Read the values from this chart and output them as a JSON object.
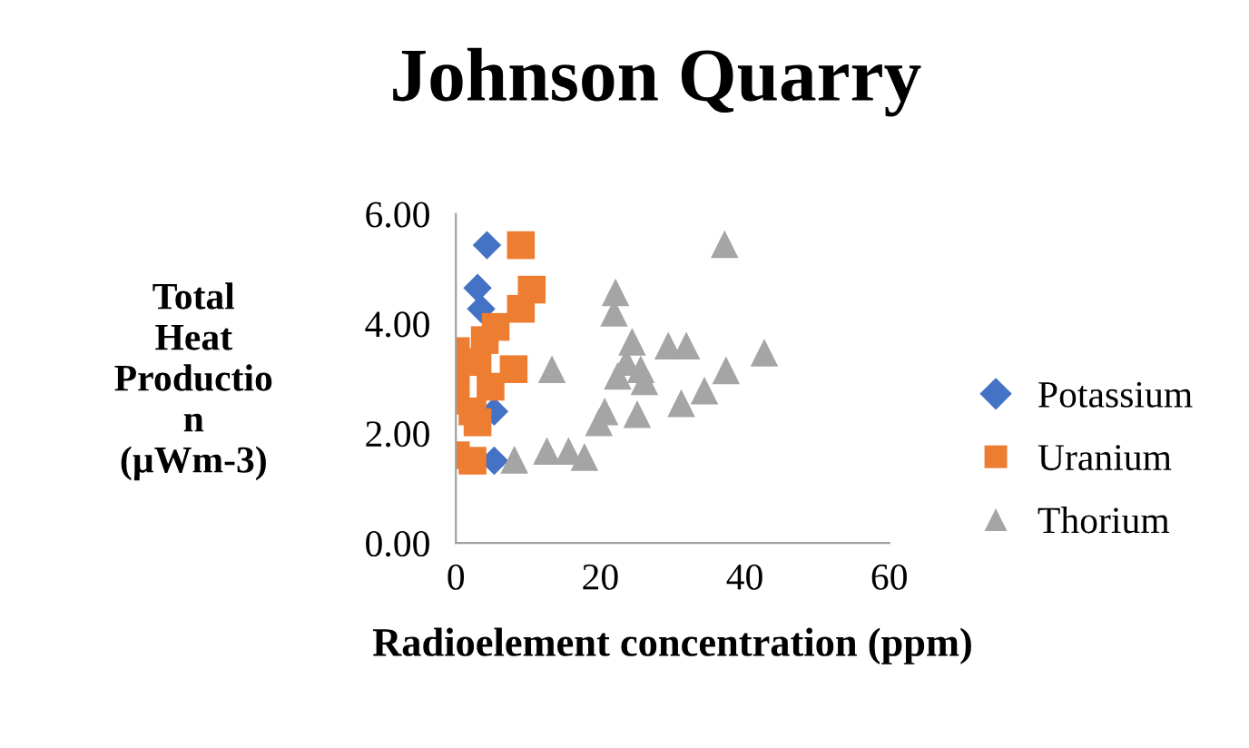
{
  "chart_data": {
    "type": "scatter",
    "title": "Johnson Quarry",
    "xlabel": "Radioelement concentration (ppm)",
    "ylabel": "Total\nHeat\nProductio\nn\n(µWm-3)",
    "xlim": [
      0,
      60
    ],
    "xticks": [
      0,
      20,
      40,
      60
    ],
    "ylim": [
      0,
      6
    ],
    "yticks": [
      {
        "value": 0,
        "label": "0.00"
      },
      {
        "value": 2,
        "label": "2.00"
      },
      {
        "value": 4,
        "label": "4.00"
      },
      {
        "value": 6,
        "label": "6.00"
      }
    ],
    "grid": false,
    "legend": "right",
    "series": [
      {
        "name": "Potassium",
        "color": "#4472c4",
        "marker": "diamond",
        "x": [
          4.3,
          3,
          3.5,
          5.3,
          5.3
        ],
        "values": [
          5.43,
          4.65,
          4.27,
          2.4,
          1.5
        ]
      },
      {
        "name": "Uranium",
        "color": "#ed7d31",
        "marker": "square",
        "x": [
          9,
          10.5,
          9,
          8,
          5.5,
          4,
          0,
          0,
          0,
          0,
          2.3,
          3,
          4.8,
          3,
          2.3
        ],
        "values": [
          5.43,
          4.62,
          4.27,
          3.17,
          3.94,
          3.7,
          3.5,
          3.1,
          2.6,
          1.6,
          1.5,
          3.3,
          2.85,
          2.2,
          2.4
        ]
      },
      {
        "name": "Thorium",
        "color": "#a5a5a5",
        "marker": "triangle",
        "x": [
          37.2,
          22.1,
          21.9,
          24.4,
          29.4,
          31.9,
          42.7,
          13.3,
          37.4,
          23.6,
          25.6,
          22.4,
          26.1,
          34.4,
          31.2,
          25.1,
          20.6,
          19.8,
          17.8,
          15.6,
          12.6,
          8.1
        ],
        "values": [
          5.45,
          4.57,
          4.2,
          3.67,
          3.6,
          3.6,
          3.47,
          3.17,
          3.15,
          3.3,
          3.17,
          3.05,
          2.95,
          2.78,
          2.55,
          2.35,
          2.4,
          2.2,
          1.57,
          1.68,
          1.68,
          1.52
        ]
      }
    ]
  }
}
